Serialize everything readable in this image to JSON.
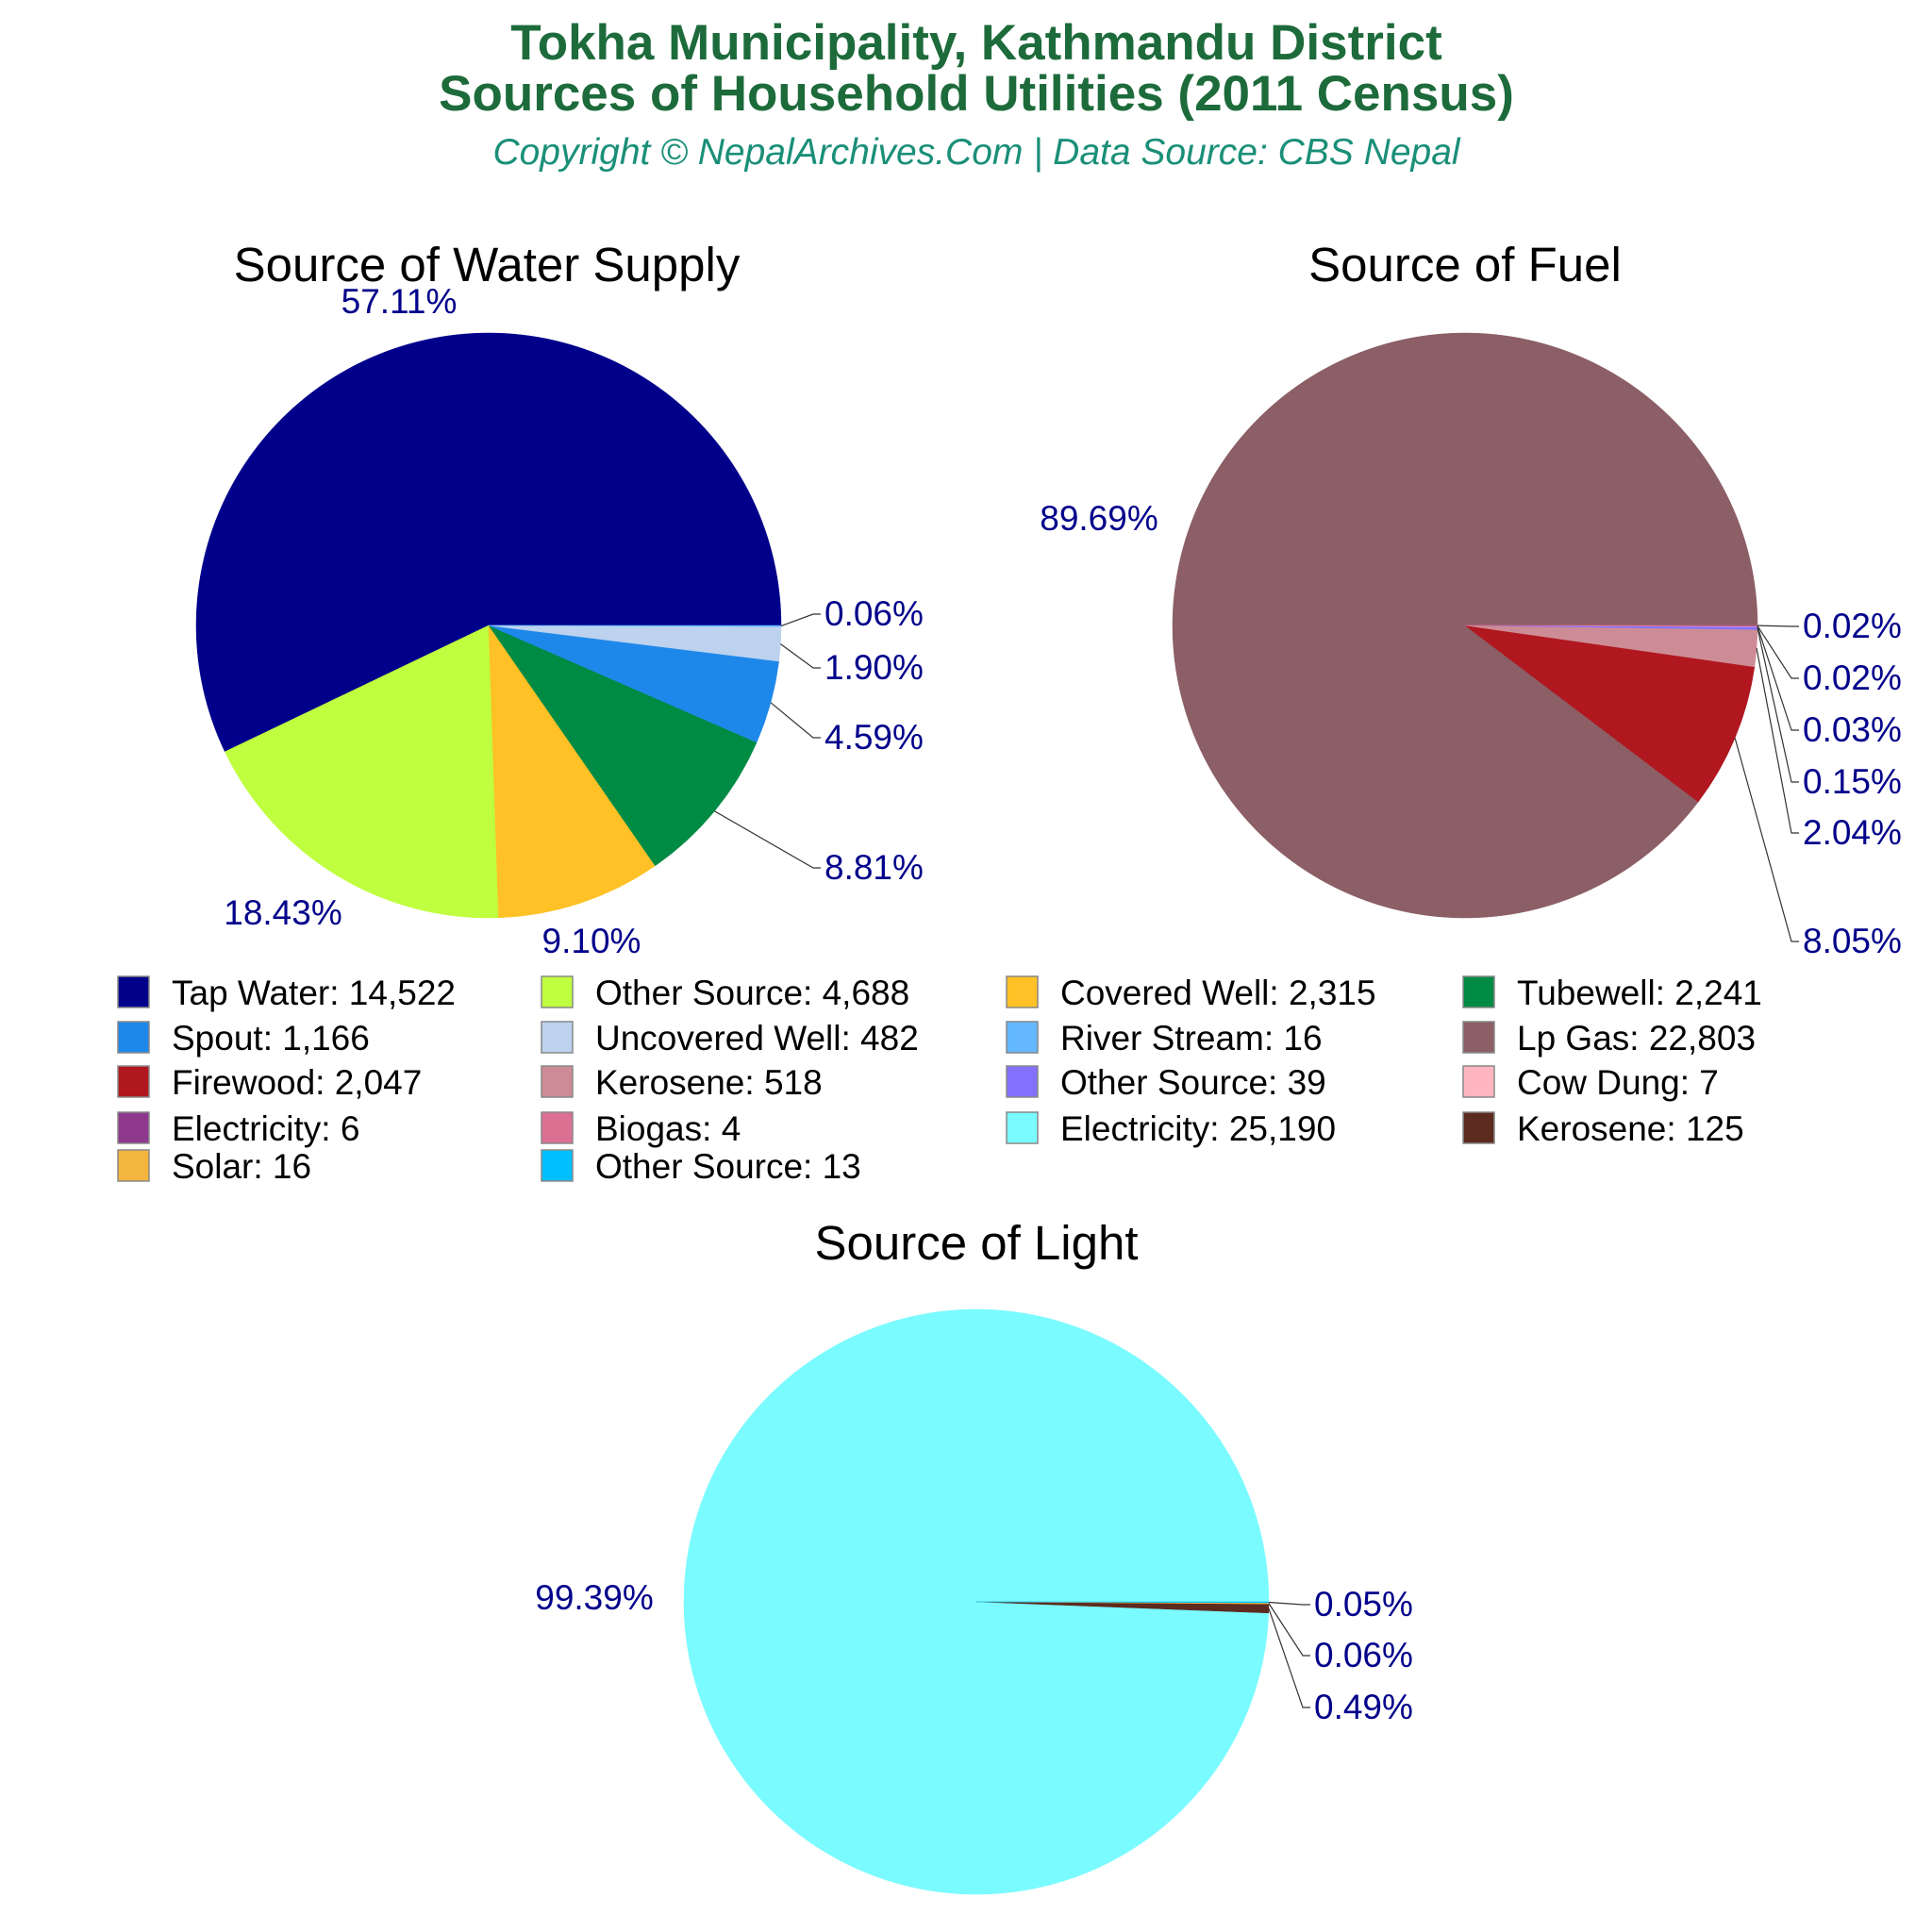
{
  "title_line1": "Tokha Municipality, Kathmandu District",
  "title_line2": "Sources of Household Utilities (2011 Census)",
  "copyright": "Copyright © NepalArchives.Com | Data Source: CBS Nepal",
  "chart_data": [
    {
      "type": "pie",
      "title": "Source of Water Supply",
      "start_angle_deg": 0,
      "direction": "counterclockwise",
      "slices": [
        {
          "name": "Tap Water",
          "value": 14522,
          "label": "57.11%",
          "color": "#00008b",
          "legend": "Tap Water: 14,522"
        },
        {
          "name": "Other Source",
          "value": 4688,
          "label": "18.43%",
          "color": "#bfff3f",
          "legend": "Other Source: 4,688"
        },
        {
          "name": "Covered Well",
          "value": 2315,
          "label": "9.10%",
          "color": "#ffc125",
          "legend": "Covered Well: 2,315"
        },
        {
          "name": "Tubewell",
          "value": 2241,
          "label": "8.81%",
          "color": "#008b45",
          "legend": "Tubewell: 2,241"
        },
        {
          "name": "Spout",
          "value": 1166,
          "label": "4.59%",
          "color": "#1e88ea",
          "legend": "Spout: 1,166"
        },
        {
          "name": "Uncovered Well",
          "value": 482,
          "label": "1.90%",
          "color": "#bcd2ee",
          "legend": "Uncovered Well: 482"
        },
        {
          "name": "River Stream",
          "value": 16,
          "label": "0.06%",
          "color": "#63b8ff",
          "legend": "River Stream: 16"
        }
      ]
    },
    {
      "type": "pie",
      "title": "Source of Fuel",
      "start_angle_deg": 0,
      "direction": "counterclockwise",
      "slices": [
        {
          "name": "Lp Gas",
          "value": 22803,
          "label": "89.69%",
          "color": "#8b5f65",
          "legend": "Lp Gas: 22,803"
        },
        {
          "name": "Firewood",
          "value": 2047,
          "label": "8.05%",
          "color": "#b0171f",
          "legend": "Firewood: 2,047"
        },
        {
          "name": "Kerosene",
          "value": 518,
          "label": "2.04%",
          "color": "#cd8c95",
          "legend": "Kerosene: 518"
        },
        {
          "name": "Other Source",
          "value": 39,
          "label": "0.15%",
          "color": "#8470ff",
          "legend": "Other Source: 39"
        },
        {
          "name": "Cow Dung",
          "value": 7,
          "label": "0.03%",
          "color": "#ffb6c1",
          "legend": "Cow Dung: 7"
        },
        {
          "name": "Electricity",
          "value": 6,
          "label": "0.02%",
          "color": "#8e388e",
          "legend": "Electricity: 6"
        },
        {
          "name": "Biogas",
          "value": 4,
          "label": "0.02%",
          "color": "#db7093",
          "legend": "Biogas: 4"
        }
      ]
    },
    {
      "type": "pie",
      "title": "Source of Light",
      "start_angle_deg": 0,
      "direction": "counterclockwise",
      "slices": [
        {
          "name": "Electricity",
          "value": 25190,
          "label": "99.39%",
          "color": "#7afbff",
          "legend": "Electricity: 25,190"
        },
        {
          "name": "Kerosene",
          "value": 125,
          "label": "0.49%",
          "color": "#5c2a1e",
          "legend": "Kerosene: 125"
        },
        {
          "name": "Solar",
          "value": 16,
          "label": "0.06%",
          "color": "#f4b53f",
          "legend": "Solar: 16"
        },
        {
          "name": "Other Source",
          "value": 13,
          "label": "0.05%",
          "color": "#00bfff",
          "legend": "Other Source: 13"
        }
      ]
    }
  ]
}
